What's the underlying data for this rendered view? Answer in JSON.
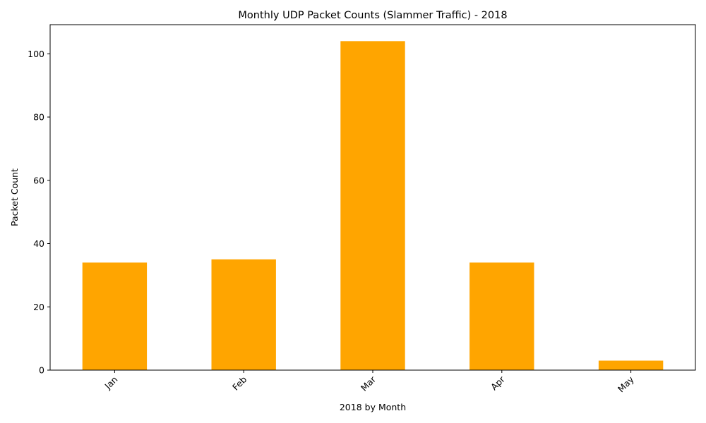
{
  "chart_data": {
    "type": "bar",
    "title": "Monthly UDP Packet Counts (Slammer Traffic) - 2018",
    "xlabel": "2018 by Month",
    "ylabel": "Packet Count",
    "categories": [
      "Jan",
      "Feb",
      "Mar",
      "Apr",
      "May"
    ],
    "values": [
      34,
      35,
      104,
      34,
      3
    ],
    "ylim": [
      0,
      109.2
    ],
    "yticks": [
      0,
      20,
      40,
      60,
      80,
      100
    ],
    "bar_color": "#ffa500",
    "grid": false,
    "x_tick_rotation_deg": 45
  }
}
